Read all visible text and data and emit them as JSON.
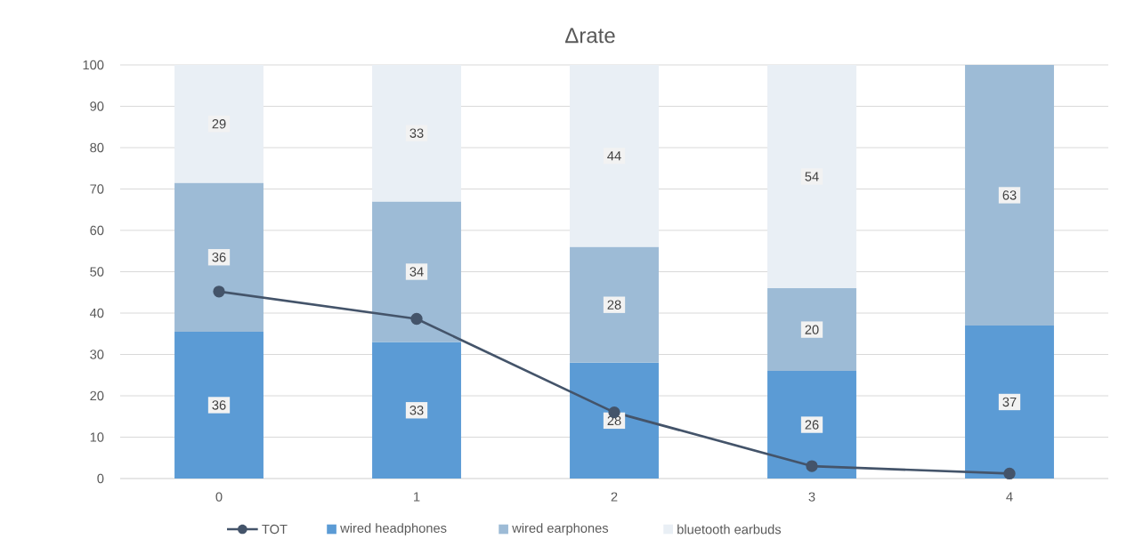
{
  "chart_data": {
    "type": "bar",
    "title": "Δrate",
    "categories": [
      "0",
      "1",
      "2",
      "3",
      "4"
    ],
    "stacked": true,
    "ylim": [
      0,
      100
    ],
    "yticks": [
      0,
      10,
      20,
      30,
      40,
      50,
      60,
      70,
      80,
      90,
      100
    ],
    "grid": "y",
    "legend": "bottom",
    "series": [
      {
        "name": "TOT",
        "type": "line",
        "marker": "circle",
        "color": "#44546a",
        "values": [
          45.2,
          38.6,
          16,
          3,
          1.2
        ]
      },
      {
        "name": "wired headphones",
        "color": "#5b9bd5",
        "values": [
          35.5,
          33,
          28,
          26,
          37
        ],
        "value_labels": [
          "36",
          "33",
          "28",
          "26",
          "37"
        ]
      },
      {
        "name": "wired earphones",
        "color": "#9dbbd6",
        "values": [
          36,
          34,
          28,
          20,
          63
        ],
        "value_labels": [
          "36",
          "34",
          "28",
          "20",
          "63"
        ]
      },
      {
        "name": "bluetooth earbuds",
        "color": "#e9eff5",
        "values": [
          28.5,
          33,
          44,
          54,
          null
        ],
        "value_labels": [
          "29",
          "33",
          "44",
          "54",
          null
        ]
      }
    ]
  }
}
